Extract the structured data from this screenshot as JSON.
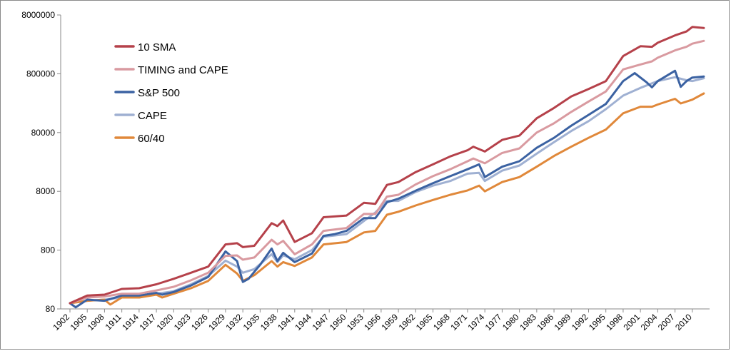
{
  "chart_data": {
    "type": "line",
    "title": "",
    "xlabel": "",
    "ylabel": "",
    "y_scale": "log",
    "ylim": [
      80,
      8000000
    ],
    "y_ticks": [
      80,
      800,
      8000,
      80000,
      800000,
      8000000
    ],
    "y_tick_labels": [
      "80",
      "800",
      "8000",
      "80000",
      "800000",
      "8000000"
    ],
    "x_range": [
      1902,
      2013
    ],
    "x_ticks": [
      1902,
      1905,
      1908,
      1911,
      1914,
      1917,
      1920,
      1923,
      1926,
      1929,
      1932,
      1935,
      1938,
      1941,
      1944,
      1947,
      1950,
      1953,
      1956,
      1959,
      1962,
      1965,
      1968,
      1971,
      1974,
      1977,
      1980,
      1983,
      1986,
      1989,
      1992,
      1995,
      1998,
      2001,
      2004,
      2007,
      2010
    ],
    "x_tick_labels": [
      "1902",
      "1905",
      "1908",
      "1911",
      "1914",
      "1917",
      "1920",
      "1923",
      "1926",
      "1929",
      "1932",
      "1935",
      "1938",
      "1941",
      "1944",
      "1947",
      "1950",
      "1953",
      "1956",
      "1959",
      "1962",
      "1965",
      "1968",
      "1971",
      "1974",
      "1977",
      "1980",
      "1983",
      "1986",
      "1989",
      "1992",
      "1995",
      "1998",
      "2001",
      "2004",
      "2007",
      "2010"
    ],
    "legend_position": "top-left",
    "series": [
      {
        "name": "10 SMA",
        "color": "#b5414a",
        "points": [
          [
            1902,
            100
          ],
          [
            1905,
            135
          ],
          [
            1908,
            140
          ],
          [
            1911,
            175
          ],
          [
            1914,
            180
          ],
          [
            1917,
            210
          ],
          [
            1920,
            260
          ],
          [
            1923,
            330
          ],
          [
            1926,
            420
          ],
          [
            1929,
            1000
          ],
          [
            1931,
            1050
          ],
          [
            1932,
            900
          ],
          [
            1934,
            950
          ],
          [
            1937,
            2300
          ],
          [
            1938,
            2050
          ],
          [
            1939,
            2550
          ],
          [
            1941,
            1100
          ],
          [
            1944,
            1550
          ],
          [
            1946,
            2900
          ],
          [
            1950,
            3100
          ],
          [
            1953,
            5100
          ],
          [
            1955,
            4900
          ],
          [
            1957,
            10300
          ],
          [
            1959,
            11500
          ],
          [
            1962,
            17000
          ],
          [
            1965,
            23000
          ],
          [
            1968,
            31500
          ],
          [
            1971,
            40000
          ],
          [
            1972,
            46000
          ],
          [
            1974,
            38000
          ],
          [
            1977,
            60000
          ],
          [
            1980,
            71000
          ],
          [
            1983,
            140000
          ],
          [
            1986,
            210000
          ],
          [
            1989,
            330000
          ],
          [
            1992,
            440000
          ],
          [
            1995,
            600000
          ],
          [
            1998,
            1600000
          ],
          [
            2001,
            2350000
          ],
          [
            2003,
            2300000
          ],
          [
            2004,
            2700000
          ],
          [
            2007,
            3600000
          ],
          [
            2009,
            4200000
          ],
          [
            2010,
            5000000
          ],
          [
            2012,
            4800000
          ]
        ]
      },
      {
        "name": "TIMING and CAPE",
        "color": "#d99aa0",
        "points": [
          [
            1902,
            100
          ],
          [
            1905,
            125
          ],
          [
            1908,
            130
          ],
          [
            1911,
            145
          ],
          [
            1914,
            145
          ],
          [
            1917,
            165
          ],
          [
            1920,
            190
          ],
          [
            1923,
            245
          ],
          [
            1926,
            330
          ],
          [
            1929,
            640
          ],
          [
            1931,
            650
          ],
          [
            1932,
            550
          ],
          [
            1934,
            600
          ],
          [
            1937,
            1200
          ],
          [
            1938,
            1000
          ],
          [
            1939,
            1150
          ],
          [
            1941,
            680
          ],
          [
            1944,
            1000
          ],
          [
            1946,
            1700
          ],
          [
            1950,
            1900
          ],
          [
            1953,
            3300
          ],
          [
            1955,
            3300
          ],
          [
            1957,
            6500
          ],
          [
            1959,
            7000
          ],
          [
            1962,
            10500
          ],
          [
            1965,
            14500
          ],
          [
            1968,
            19000
          ],
          [
            1971,
            26000
          ],
          [
            1972,
            29000
          ],
          [
            1974,
            24000
          ],
          [
            1977,
            36000
          ],
          [
            1980,
            43000
          ],
          [
            1983,
            80000
          ],
          [
            1986,
            115000
          ],
          [
            1989,
            180000
          ],
          [
            1992,
            270000
          ],
          [
            1995,
            400000
          ],
          [
            1998,
            950000
          ],
          [
            2001,
            1150000
          ],
          [
            2003,
            1300000
          ],
          [
            2004,
            1500000
          ],
          [
            2007,
            2000000
          ],
          [
            2009,
            2300000
          ],
          [
            2010,
            2600000
          ],
          [
            2012,
            2900000
          ]
        ]
      },
      {
        "name": "S&P 500",
        "color": "#3b62a2",
        "points": [
          [
            1902,
            100
          ],
          [
            1903,
            85
          ],
          [
            1905,
            115
          ],
          [
            1908,
            110
          ],
          [
            1911,
            135
          ],
          [
            1914,
            135
          ],
          [
            1917,
            150
          ],
          [
            1918,
            140
          ],
          [
            1920,
            155
          ],
          [
            1923,
            200
          ],
          [
            1926,
            280
          ],
          [
            1929,
            760
          ],
          [
            1931,
            520
          ],
          [
            1932,
            230
          ],
          [
            1933,
            260
          ],
          [
            1935,
            450
          ],
          [
            1937,
            850
          ],
          [
            1938,
            520
          ],
          [
            1939,
            720
          ],
          [
            1941,
            500
          ],
          [
            1944,
            700
          ],
          [
            1946,
            1400
          ],
          [
            1948,
            1500
          ],
          [
            1950,
            1700
          ],
          [
            1953,
            2800
          ],
          [
            1955,
            2800
          ],
          [
            1957,
            5200
          ],
          [
            1959,
            6000
          ],
          [
            1962,
            8200
          ],
          [
            1965,
            11000
          ],
          [
            1968,
            14500
          ],
          [
            1971,
            19000
          ],
          [
            1973,
            23000
          ],
          [
            1974,
            14000
          ],
          [
            1977,
            21000
          ],
          [
            1980,
            26000
          ],
          [
            1983,
            44000
          ],
          [
            1986,
            65000
          ],
          [
            1989,
            105000
          ],
          [
            1992,
            160000
          ],
          [
            1995,
            245000
          ],
          [
            1998,
            600000
          ],
          [
            2000,
            820000
          ],
          [
            2002,
            580000
          ],
          [
            2003,
            470000
          ],
          [
            2004,
            600000
          ],
          [
            2007,
            900000
          ],
          [
            2008,
            480000
          ],
          [
            2009,
            600000
          ],
          [
            2010,
            690000
          ],
          [
            2012,
            720000
          ]
        ]
      },
      {
        "name": "CAPE",
        "color": "#9fb0d2",
        "points": [
          [
            1902,
            100
          ],
          [
            1905,
            110
          ],
          [
            1908,
            115
          ],
          [
            1911,
            125
          ],
          [
            1914,
            125
          ],
          [
            1917,
            145
          ],
          [
            1920,
            160
          ],
          [
            1923,
            210
          ],
          [
            1926,
            290
          ],
          [
            1929,
            530
          ],
          [
            1931,
            420
          ],
          [
            1932,
            330
          ],
          [
            1934,
            380
          ],
          [
            1937,
            680
          ],
          [
            1938,
            500
          ],
          [
            1939,
            650
          ],
          [
            1941,
            560
          ],
          [
            1944,
            800
          ],
          [
            1946,
            1350
          ],
          [
            1950,
            1500
          ],
          [
            1953,
            2500
          ],
          [
            1955,
            3500
          ],
          [
            1957,
            5500
          ],
          [
            1959,
            5500
          ],
          [
            1962,
            7800
          ],
          [
            1965,
            10000
          ],
          [
            1968,
            12000
          ],
          [
            1971,
            16000
          ],
          [
            1973,
            16500
          ],
          [
            1974,
            12000
          ],
          [
            1977,
            18000
          ],
          [
            1980,
            22000
          ],
          [
            1983,
            35000
          ],
          [
            1986,
            55000
          ],
          [
            1989,
            85000
          ],
          [
            1992,
            125000
          ],
          [
            1995,
            200000
          ],
          [
            1998,
            340000
          ],
          [
            2001,
            460000
          ],
          [
            2003,
            550000
          ],
          [
            2004,
            600000
          ],
          [
            2007,
            700000
          ],
          [
            2009,
            620000
          ],
          [
            2010,
            600000
          ],
          [
            2012,
            670000
          ]
        ]
      },
      {
        "name": "60/40",
        "color": "#e0883a",
        "points": [
          [
            1902,
            100
          ],
          [
            1905,
            110
          ],
          [
            1908,
            115
          ],
          [
            1909,
            95
          ],
          [
            1911,
            125
          ],
          [
            1914,
            125
          ],
          [
            1917,
            140
          ],
          [
            1918,
            125
          ],
          [
            1920,
            145
          ],
          [
            1923,
            180
          ],
          [
            1926,
            240
          ],
          [
            1929,
            450
          ],
          [
            1931,
            320
          ],
          [
            1932,
            240
          ],
          [
            1934,
            300
          ],
          [
            1937,
            520
          ],
          [
            1938,
            420
          ],
          [
            1939,
            500
          ],
          [
            1941,
            430
          ],
          [
            1944,
            600
          ],
          [
            1946,
            1000
          ],
          [
            1950,
            1100
          ],
          [
            1953,
            1600
          ],
          [
            1955,
            1700
          ],
          [
            1957,
            3200
          ],
          [
            1959,
            3600
          ],
          [
            1962,
            4600
          ],
          [
            1965,
            5700
          ],
          [
            1968,
            7000
          ],
          [
            1971,
            8300
          ],
          [
            1973,
            10000
          ],
          [
            1974,
            8000
          ],
          [
            1977,
            11500
          ],
          [
            1980,
            14000
          ],
          [
            1983,
            21000
          ],
          [
            1986,
            32000
          ],
          [
            1989,
            46000
          ],
          [
            1992,
            65000
          ],
          [
            1995,
            90000
          ],
          [
            1998,
            170000
          ],
          [
            2001,
            220000
          ],
          [
            2003,
            220000
          ],
          [
            2004,
            240000
          ],
          [
            2007,
            300000
          ],
          [
            2008,
            250000
          ],
          [
            2010,
            290000
          ],
          [
            2012,
            370000
          ]
        ]
      }
    ]
  }
}
